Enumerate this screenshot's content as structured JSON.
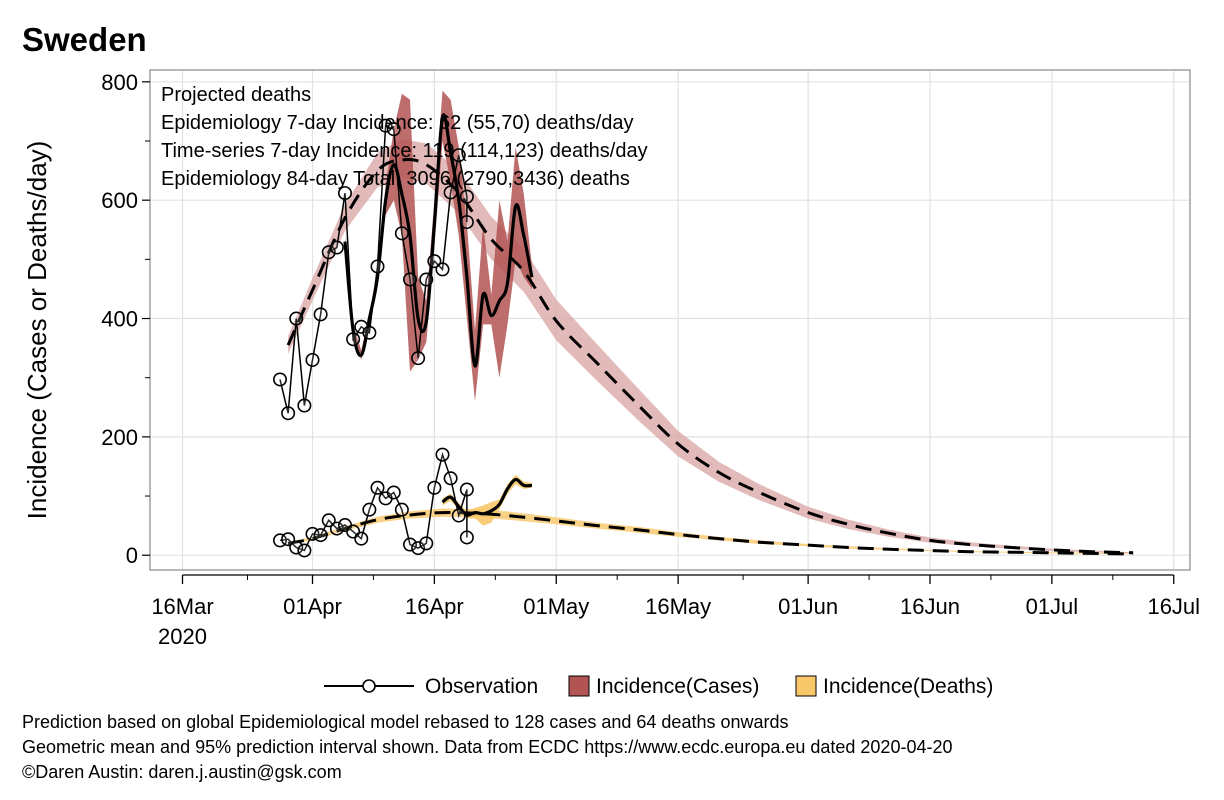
{
  "chart_data": {
    "type": "line",
    "title": "Sweden",
    "ylabel": "Incidence (Cases or Deaths/day)",
    "xlabel": "",
    "ylim": [
      -25,
      820
    ],
    "yticks": [
      0,
      200,
      400,
      600,
      800
    ],
    "xlim": [
      "2020-03-12",
      "2020-07-18"
    ],
    "xticks": [
      {
        "date": "2020-03-16",
        "label": "16Mar",
        "sublabel": "2020"
      },
      {
        "date": "2020-04-01",
        "label": "01Apr"
      },
      {
        "date": "2020-04-16",
        "label": "16Apr"
      },
      {
        "date": "2020-05-01",
        "label": "01May"
      },
      {
        "date": "2020-05-16",
        "label": "16May"
      },
      {
        "date": "2020-06-01",
        "label": "01Jun"
      },
      {
        "date": "2020-06-16",
        "label": "16Jun"
      },
      {
        "date": "2020-07-01",
        "label": "01Jul"
      },
      {
        "date": "2020-07-16",
        "label": "16Jul"
      }
    ],
    "grid": true,
    "legend_position": "bottom",
    "annotations": [
      "Projected deaths",
      "Epidemiology 7-day Incidence:  62 (55,70) deaths/day",
      "Time-series 7-day Incidence:  119 (114,123) deaths/day",
      "Epidemiology 84-day Total:  3096 (2790,3436) deaths"
    ],
    "legend": [
      {
        "label": "Observation",
        "marker": "circle-line",
        "color": "#000000"
      },
      {
        "label": "Incidence(Cases)",
        "marker": "box",
        "color": "#b35454"
      },
      {
        "label": "Incidence(Deaths)",
        "marker": "box",
        "color": "#f7c76a"
      }
    ],
    "colors": {
      "cases_band": "#d9a3a3",
      "cases_ts_band": "#b35454",
      "deaths_band": "#f7c76a",
      "line": "#000000",
      "grid": "#e2e2e2",
      "frame": "#a0a0a0"
    },
    "series": [
      {
        "id": "cases_obs",
        "x": [
          "2020-03-28",
          "2020-03-29",
          "2020-03-30",
          "2020-03-31",
          "2020-04-01",
          "2020-04-02",
          "2020-04-03",
          "2020-04-04",
          "2020-04-05",
          "2020-04-06",
          "2020-04-07",
          "2020-04-08",
          "2020-04-09",
          "2020-04-10",
          "2020-04-11",
          "2020-04-12",
          "2020-04-13",
          "2020-04-14",
          "2020-04-15",
          "2020-04-16",
          "2020-04-17",
          "2020-04-18",
          "2020-04-19",
          "2020-04-20"
        ],
        "y": [
          297,
          240,
          400,
          253,
          330,
          407,
          512,
          520,
          612,
          365,
          386,
          376,
          488,
          726,
          720,
          544,
          466,
          333,
          466,
          497,
          483,
          613,
          676,
          606
        ],
        "extra_point": {
          "x": "2020-04-20",
          "y": 563
        }
      },
      {
        "id": "deaths_obs",
        "x": [
          "2020-03-28",
          "2020-03-29",
          "2020-03-30",
          "2020-03-31",
          "2020-04-01",
          "2020-04-02",
          "2020-04-03",
          "2020-04-04",
          "2020-04-05",
          "2020-04-06",
          "2020-04-07",
          "2020-04-08",
          "2020-04-09",
          "2020-04-10",
          "2020-04-11",
          "2020-04-12",
          "2020-04-13",
          "2020-04-14",
          "2020-04-15",
          "2020-04-16",
          "2020-04-17",
          "2020-04-18",
          "2020-04-19",
          "2020-04-20"
        ],
        "y": [
          25,
          27,
          13,
          8,
          36,
          34,
          59,
          45,
          51,
          40,
          28,
          77,
          114,
          96,
          106,
          77,
          18,
          12,
          20,
          114,
          170,
          130,
          67,
          111
        ],
        "extra_point": {
          "x": "2020-04-20",
          "y": 30
        }
      },
      {
        "id": "cases_epi_mean",
        "x": [
          "2020-03-29",
          "2020-04-01",
          "2020-04-05",
          "2020-04-09",
          "2020-04-12",
          "2020-04-15",
          "2020-04-19",
          "2020-04-23",
          "2020-04-27",
          "2020-05-01",
          "2020-05-06",
          "2020-05-11",
          "2020-05-16",
          "2020-05-21",
          "2020-05-26",
          "2020-06-01",
          "2020-06-06",
          "2020-06-11",
          "2020-06-16",
          "2020-06-21",
          "2020-06-26",
          "2020-07-01",
          "2020-07-06",
          "2020-07-11"
        ],
        "y": [
          355,
          448,
          570,
          650,
          668,
          660,
          612,
          534,
          480,
          396,
          325,
          255,
          188,
          140,
          106,
          72,
          52,
          37,
          25,
          18,
          13,
          9,
          6,
          4
        ]
      },
      {
        "id": "cases_epi_band",
        "x": [
          "2020-03-29",
          "2020-04-01",
          "2020-04-05",
          "2020-04-09",
          "2020-04-12",
          "2020-04-15",
          "2020-04-19",
          "2020-04-23",
          "2020-04-27",
          "2020-05-01",
          "2020-05-06",
          "2020-05-11",
          "2020-05-16",
          "2020-05-21",
          "2020-05-26",
          "2020-06-01",
          "2020-06-06",
          "2020-06-11",
          "2020-06-16",
          "2020-06-21",
          "2020-06-26",
          "2020-07-01",
          "2020-07-06",
          "2020-07-11"
        ],
        "lower": [
          340,
          430,
          548,
          622,
          638,
          628,
          578,
          500,
          445,
          363,
          295,
          229,
          167,
          124,
          93,
          62,
          44,
          31,
          21,
          15,
          11,
          7,
          5,
          3
        ],
        "upper": [
          370,
          468,
          593,
          680,
          703,
          696,
          650,
          572,
          518,
          432,
          357,
          283,
          210,
          158,
          120,
          82,
          60,
          43,
          30,
          22,
          16,
          11,
          8,
          5
        ]
      },
      {
        "id": "cases_ts_mean",
        "x": [
          "2020-04-05",
          "2020-04-06",
          "2020-04-07",
          "2020-04-08",
          "2020-04-09",
          "2020-04-10",
          "2020-04-11",
          "2020-04-12",
          "2020-04-13",
          "2020-04-14",
          "2020-04-15",
          "2020-04-16",
          "2020-04-17",
          "2020-04-18",
          "2020-04-19",
          "2020-04-20",
          "2020-04-21",
          "2020-04-22",
          "2020-04-23",
          "2020-04-24",
          "2020-04-25",
          "2020-04-26",
          "2020-04-27",
          "2020-04-28"
        ],
        "y": [
          530,
          380,
          338,
          400,
          470,
          600,
          660,
          610,
          540,
          400,
          395,
          560,
          740,
          680,
          600,
          470,
          320,
          440,
          405,
          430,
          460,
          590,
          540,
          470
        ]
      },
      {
        "id": "cases_ts_band",
        "x": [
          "2020-04-05",
          "2020-04-06",
          "2020-04-07",
          "2020-04-08",
          "2020-04-09",
          "2020-04-10",
          "2020-04-11",
          "2020-04-12",
          "2020-04-13",
          "2020-04-14",
          "2020-04-15",
          "2020-04-16",
          "2020-04-17",
          "2020-04-18",
          "2020-04-19",
          "2020-04-20",
          "2020-04-21",
          "2020-04-22",
          "2020-04-23",
          "2020-04-24",
          "2020-04-25",
          "2020-04-26",
          "2020-04-27",
          "2020-04-28"
        ],
        "lower": [
          520,
          370,
          330,
          390,
          455,
          575,
          600,
          540,
          310,
          330,
          360,
          520,
          700,
          630,
          540,
          400,
          260,
          390,
          390,
          300,
          390,
          500,
          470,
          450
        ],
        "upper": [
          540,
          390,
          346,
          410,
          485,
          625,
          720,
          780,
          770,
          470,
          430,
          600,
          785,
          770,
          690,
          560,
          380,
          560,
          440,
          600,
          530,
          690,
          610,
          490
        ]
      },
      {
        "id": "deaths_epi_mean",
        "x": [
          "2020-03-29",
          "2020-04-01",
          "2020-04-05",
          "2020-04-09",
          "2020-04-13",
          "2020-04-17",
          "2020-04-21",
          "2020-04-25",
          "2020-05-01",
          "2020-05-06",
          "2020-05-11",
          "2020-05-16",
          "2020-05-21",
          "2020-05-26",
          "2020-06-01",
          "2020-06-06",
          "2020-06-11",
          "2020-06-16",
          "2020-06-21",
          "2020-06-26",
          "2020-07-01",
          "2020-07-06",
          "2020-07-11"
        ],
        "y": [
          20,
          28,
          45,
          60,
          68,
          72,
          71,
          67,
          58,
          50,
          43,
          35,
          28,
          22,
          17,
          13,
          10,
          8,
          6,
          5,
          4,
          3,
          2
        ]
      },
      {
        "id": "deaths_epi_band",
        "x": [
          "2020-03-29",
          "2020-04-01",
          "2020-04-05",
          "2020-04-09",
          "2020-04-13",
          "2020-04-17",
          "2020-04-21",
          "2020-04-25",
          "2020-05-01",
          "2020-05-06",
          "2020-05-11",
          "2020-05-16",
          "2020-05-21",
          "2020-05-26",
          "2020-06-01",
          "2020-06-06",
          "2020-06-11",
          "2020-06-16",
          "2020-06-21",
          "2020-06-26",
          "2020-07-01",
          "2020-07-06",
          "2020-07-11"
        ],
        "lower": [
          18,
          25,
          41,
          55,
          62,
          65,
          64,
          60,
          52,
          45,
          38,
          31,
          25,
          19,
          15,
          11,
          9,
          7,
          5,
          4,
          3,
          2,
          2
        ],
        "upper": [
          22,
          31,
          49,
          65,
          74,
          79,
          78,
          74,
          64,
          55,
          48,
          39,
          31,
          25,
          19,
          15,
          12,
          9,
          7,
          6,
          5,
          4,
          3
        ]
      },
      {
        "id": "deaths_ts_mean",
        "x": [
          "2020-04-17",
          "2020-04-18",
          "2020-04-19",
          "2020-04-20",
          "2020-04-21",
          "2020-04-22",
          "2020-04-23",
          "2020-04-24",
          "2020-04-25",
          "2020-04-26",
          "2020-04-27",
          "2020-04-28"
        ],
        "y": [
          90,
          98,
          82,
          68,
          72,
          70,
          75,
          86,
          112,
          128,
          118,
          118
        ]
      },
      {
        "id": "deaths_ts_band",
        "x": [
          "2020-04-17",
          "2020-04-18",
          "2020-04-19",
          "2020-04-20",
          "2020-04-21",
          "2020-04-22",
          "2020-04-23",
          "2020-04-24",
          "2020-04-25",
          "2020-04-26",
          "2020-04-27",
          "2020-04-28"
        ],
        "lower": [
          84,
          92,
          76,
          62,
          62,
          50,
          55,
          78,
          104,
          120,
          112,
          114
        ],
        "upper": [
          96,
          104,
          88,
          74,
          80,
          84,
          90,
          94,
          120,
          136,
          124,
          122
        ]
      }
    ]
  },
  "footer": [
    "Prediction based on global Epidemiological model rebased to 128 cases and 64 deaths onwards",
    "Geometric mean and 95% prediction interval shown. Data from ECDC https://www.ecdc.europa.eu dated 2020-04-20",
    "©Daren Austin: daren.j.austin@gsk.com"
  ]
}
